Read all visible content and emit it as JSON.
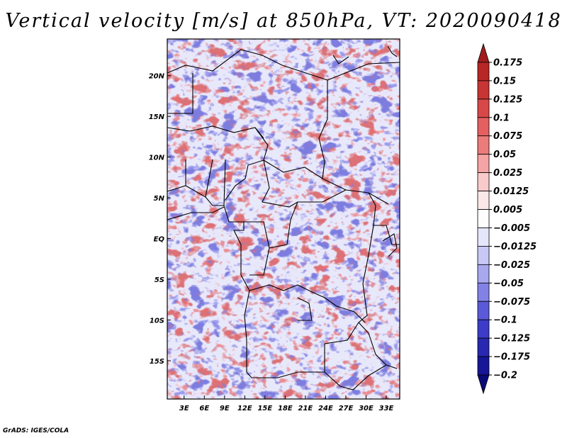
{
  "title": "Vertical velocity [m/s] at 850hPa, VT: 2020090418",
  "credit": "GrADS: IGES/COLA",
  "map": {
    "lon_labels": [
      "3E",
      "6E",
      "9E",
      "12E",
      "15E",
      "18E",
      "21E",
      "24E",
      "27E",
      "30E",
      "33E"
    ],
    "lon_values": [
      3,
      6,
      9,
      12,
      15,
      18,
      21,
      24,
      27,
      30,
      33
    ],
    "lat_labels": [
      "20N",
      "15N",
      "10N",
      "5N",
      "EQ",
      "5S",
      "10S",
      "15S"
    ],
    "lat_values": [
      20,
      15,
      10,
      5,
      0,
      -5,
      -10,
      -15
    ],
    "lon_range": [
      0.5,
      35
    ],
    "lat_range": [
      -19.7,
      24.5
    ]
  },
  "colorbar": {
    "labels": [
      "0.175",
      "0.15",
      "0.125",
      "0.1",
      "0.075",
      "0.05",
      "0.025",
      "0.0125",
      "0.005",
      "−0.005",
      "−0.0125",
      "−0.025",
      "−0.05",
      "−0.075",
      "−0.1",
      "−0.125",
      "−0.175",
      "−0.2"
    ],
    "colors": [
      "#a01c1c",
      "#b82626",
      "#c93434",
      "#d84848",
      "#e46060",
      "#ec7c7c",
      "#f4a4a4",
      "#f9caca",
      "#fde8e8",
      "#fdfdfd",
      "#e6e6fb",
      "#c8c8f6",
      "#a8a8ef",
      "#8282e6",
      "#5a5ad8",
      "#3c3cc8",
      "#2828b0",
      "#161696",
      "#0a0a78"
    ]
  }
}
